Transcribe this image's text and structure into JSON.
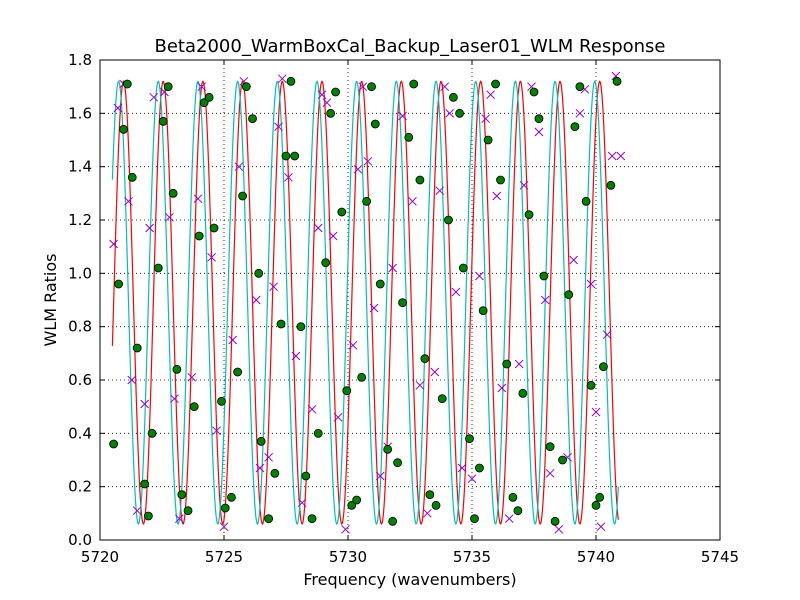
{
  "chart_data": {
    "type": "line",
    "title": "Beta2000_WarmBoxCal_Backup_Laser01_WLM Response",
    "xlabel": "Frequency (wavenumbers)",
    "ylabel": "WLM Ratios",
    "xlim": [
      5720,
      5745
    ],
    "ylim": [
      0.0,
      1.8
    ],
    "xticks": [
      5720,
      5725,
      5730,
      5735,
      5740,
      5745
    ],
    "yticks": [
      0.0,
      0.2,
      0.4,
      0.6,
      0.8,
      1.0,
      1.2,
      1.4,
      1.6,
      1.8
    ],
    "grid": "dotted",
    "colors": {
      "ratio1_fit": "#ff0000",
      "ratio2_fit": "#00bfbf",
      "ratio1_points": "#9400d3",
      "ratio2_points": "#008000"
    },
    "model": {
      "x_range": [
        5720.5,
        5740.9
      ],
      "amplitude": 0.83,
      "offset": 0.89,
      "period": 1.6,
      "phase_ref_x": 5720.95
    },
    "series": [
      {
        "marker": "line",
        "color": "#ff0000",
        "phase_ref_x": 5720.95
      },
      {
        "marker": "line",
        "color": "#00bfbf",
        "phase_ref_x": 5720.75
      },
      {
        "marker": "x",
        "color": "#9400d3",
        "points": [
          [
            5720.55,
            1.11
          ],
          [
            5720.72,
            1.62
          ],
          [
            5720.95,
            1.71
          ],
          [
            5721.15,
            1.27
          ],
          [
            5721.28,
            0.6
          ],
          [
            5721.5,
            0.11
          ],
          [
            5721.8,
            0.51
          ],
          [
            5722.0,
            1.17
          ],
          [
            5722.17,
            1.66
          ],
          [
            5722.6,
            1.68
          ],
          [
            5722.8,
            1.21
          ],
          [
            5723.0,
            0.53
          ],
          [
            5723.2,
            0.08
          ],
          [
            5723.7,
            0.61
          ],
          [
            5723.95,
            1.28
          ],
          [
            5724.1,
            1.7
          ],
          [
            5724.5,
            1.06
          ],
          [
            5724.7,
            0.41
          ],
          [
            5725.0,
            0.05
          ],
          [
            5725.35,
            0.75
          ],
          [
            5725.6,
            1.4
          ],
          [
            5725.8,
            1.72
          ],
          [
            5726.3,
            0.9
          ],
          [
            5726.45,
            0.27
          ],
          [
            5726.8,
            0.31
          ],
          [
            5727.0,
            0.95
          ],
          [
            5727.2,
            1.55
          ],
          [
            5727.35,
            1.73
          ],
          [
            5727.6,
            1.36
          ],
          [
            5727.9,
            0.69
          ],
          [
            5728.15,
            0.14
          ],
          [
            5728.55,
            0.49
          ],
          [
            5728.8,
            1.17
          ],
          [
            5728.95,
            1.67
          ],
          [
            5729.15,
            1.64
          ],
          [
            5729.4,
            1.14
          ],
          [
            5729.6,
            0.46
          ],
          [
            5729.9,
            0.04
          ],
          [
            5730.2,
            0.73
          ],
          [
            5730.4,
            1.39
          ],
          [
            5730.6,
            1.7
          ],
          [
            5730.8,
            1.42
          ],
          [
            5731.05,
            0.87
          ],
          [
            5731.3,
            0.24
          ],
          [
            5731.6,
            0.35
          ],
          [
            5731.8,
            1.02
          ],
          [
            5732.2,
            1.59
          ],
          [
            5732.6,
            1.27
          ],
          [
            5732.9,
            0.58
          ],
          [
            5733.2,
            0.1
          ],
          [
            5733.5,
            0.63
          ],
          [
            5733.7,
            1.31
          ],
          [
            5733.9,
            1.7
          ],
          [
            5734.1,
            1.6
          ],
          [
            5734.35,
            0.93
          ],
          [
            5734.6,
            0.27
          ],
          [
            5735.0,
            0.23
          ],
          [
            5735.3,
            0.99
          ],
          [
            5735.55,
            1.58
          ],
          [
            5735.75,
            1.67
          ],
          [
            5736.0,
            1.29
          ],
          [
            5736.2,
            0.57
          ],
          [
            5736.5,
            0.08
          ],
          [
            5736.9,
            0.66
          ],
          [
            5737.1,
            1.33
          ],
          [
            5737.4,
            1.7
          ],
          [
            5737.7,
            1.53
          ],
          [
            5737.95,
            0.9
          ],
          [
            5738.15,
            0.25
          ],
          [
            5738.5,
            0.04
          ],
          [
            5738.85,
            0.31
          ],
          [
            5739.1,
            1.05
          ],
          [
            5739.35,
            1.6
          ],
          [
            5739.55,
            1.69
          ],
          [
            5739.8,
            0.96
          ],
          [
            5740.0,
            0.48
          ],
          [
            5740.2,
            0.05
          ],
          [
            5740.45,
            0.77
          ],
          [
            5740.65,
            1.44
          ],
          [
            5740.8,
            1.74
          ],
          [
            5741.0,
            1.44
          ]
        ]
      },
      {
        "marker": "o",
        "color": "#008000",
        "points": [
          [
            5720.55,
            0.36
          ],
          [
            5720.75,
            0.96
          ],
          [
            5720.95,
            1.54
          ],
          [
            5721.1,
            1.71
          ],
          [
            5721.3,
            1.36
          ],
          [
            5721.5,
            0.72
          ],
          [
            5721.8,
            0.21
          ],
          [
            5721.95,
            0.09
          ],
          [
            5722.1,
            0.4
          ],
          [
            5722.35,
            1.02
          ],
          [
            5722.55,
            1.57
          ],
          [
            5722.75,
            1.7
          ],
          [
            5722.95,
            1.3
          ],
          [
            5723.1,
            0.64
          ],
          [
            5723.3,
            0.17
          ],
          [
            5723.55,
            0.11
          ],
          [
            5723.8,
            0.5
          ],
          [
            5724.0,
            1.14
          ],
          [
            5724.2,
            1.64
          ],
          [
            5724.4,
            1.66
          ],
          [
            5724.6,
            1.17
          ],
          [
            5724.9,
            0.52
          ],
          [
            5725.05,
            0.12
          ],
          [
            5725.3,
            0.16
          ],
          [
            5725.55,
            0.63
          ],
          [
            5725.75,
            1.29
          ],
          [
            5725.9,
            1.7
          ],
          [
            5726.15,
            1.58
          ],
          [
            5726.4,
            1.0
          ],
          [
            5726.5,
            0.37
          ],
          [
            5726.8,
            0.08
          ],
          [
            5727.05,
            0.25
          ],
          [
            5727.3,
            0.81
          ],
          [
            5727.5,
            1.44
          ],
          [
            5727.7,
            1.72
          ],
          [
            5727.85,
            1.44
          ],
          [
            5728.1,
            0.8
          ],
          [
            5728.3,
            0.24
          ],
          [
            5728.55,
            0.08
          ],
          [
            5728.8,
            0.4
          ],
          [
            5729.1,
            1.04
          ],
          [
            5729.3,
            1.6
          ],
          [
            5729.5,
            1.68
          ],
          [
            5729.75,
            1.23
          ],
          [
            5729.95,
            0.56
          ],
          [
            5730.15,
            0.13
          ],
          [
            5730.35,
            0.15
          ],
          [
            5730.55,
            0.61
          ],
          [
            5730.75,
            1.27
          ],
          [
            5730.95,
            1.7
          ],
          [
            5731.1,
            1.56
          ],
          [
            5731.3,
            0.96
          ],
          [
            5731.6,
            0.34
          ],
          [
            5731.8,
            0.07
          ],
          [
            5732.0,
            0.29
          ],
          [
            5732.2,
            0.89
          ],
          [
            5732.45,
            1.51
          ],
          [
            5732.65,
            1.71
          ],
          [
            5732.9,
            1.35
          ],
          [
            5733.1,
            0.68
          ],
          [
            5733.3,
            0.17
          ],
          [
            5733.55,
            0.13
          ],
          [
            5733.8,
            0.53
          ],
          [
            5734.05,
            1.2
          ],
          [
            5734.25,
            1.66
          ],
          [
            5734.5,
            1.6
          ],
          [
            5734.65,
            1.02
          ],
          [
            5734.9,
            0.38
          ],
          [
            5735.1,
            0.08
          ],
          [
            5735.3,
            0.27
          ],
          [
            5735.45,
            0.86
          ],
          [
            5735.65,
            1.5
          ],
          [
            5735.95,
            1.71
          ],
          [
            5736.15,
            1.35
          ],
          [
            5736.4,
            0.66
          ],
          [
            5736.65,
            0.16
          ],
          [
            5736.85,
            0.11
          ],
          [
            5737.05,
            0.55
          ],
          [
            5737.3,
            1.22
          ],
          [
            5737.5,
            1.68
          ],
          [
            5737.7,
            1.58
          ],
          [
            5737.9,
            0.99
          ],
          [
            5738.15,
            0.35
          ],
          [
            5738.35,
            0.07
          ],
          [
            5738.65,
            0.3
          ],
          [
            5738.9,
            0.92
          ],
          [
            5739.15,
            1.55
          ],
          [
            5739.35,
            1.7
          ],
          [
            5739.6,
            1.27
          ],
          [
            5739.8,
            0.58
          ],
          [
            5740.0,
            0.13
          ],
          [
            5740.15,
            0.16
          ],
          [
            5740.3,
            0.65
          ],
          [
            5740.6,
            1.33
          ],
          [
            5740.85,
            1.72
          ]
        ]
      }
    ]
  }
}
